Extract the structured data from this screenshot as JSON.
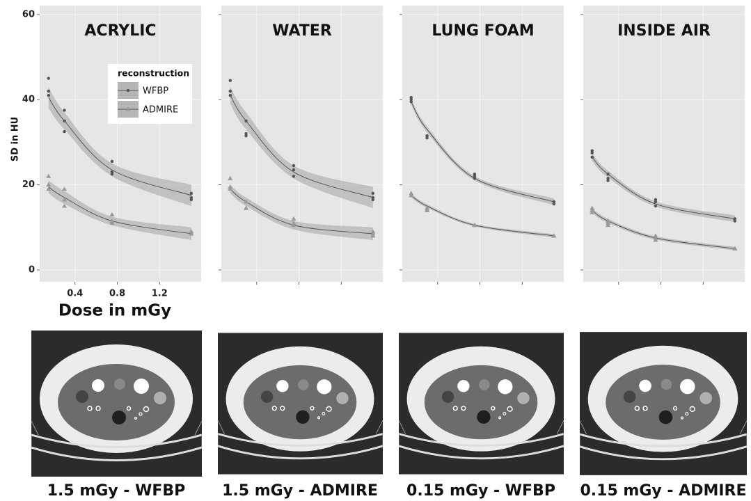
{
  "chart_data": [
    {
      "type": "scatter",
      "title": "ACRYLIC",
      "ylabel": "SD in HU",
      "xlabel": "Dose in mGy",
      "xlim": [
        0.066,
        1.593
      ],
      "ylim": [
        -2.8,
        62.1
      ],
      "xticks": [
        0.4,
        0.8,
        1.2
      ],
      "yticks": [
        0,
        20,
        40,
        60
      ],
      "grid": true,
      "legend": "top-right",
      "legend_title": "reconstruction",
      "series": [
        {
          "name": "WFBP",
          "color": "#555555",
          "marker": "circle",
          "x": [
            0.15,
            0.15,
            0.15,
            0.3,
            0.3,
            0.3,
            0.75,
            0.75,
            0.75,
            1.5,
            1.5,
            1.5
          ],
          "values": [
            45,
            42,
            41,
            37.5,
            35,
            32.5,
            25.5,
            23,
            22.5,
            18,
            17,
            16.5
          ],
          "fit": {
            "x": [
              0.15,
              0.3,
              0.75,
              1.5
            ],
            "values": [
              40.5,
              35,
              23.5,
              17.5
            ],
            "lower": [
              38,
              33,
              22,
              15
            ],
            "upper": [
              43,
              37,
              25,
              20
            ]
          }
        },
        {
          "name": "ADMIRE",
          "color": "#999999",
          "marker": "triangle",
          "x": [
            0.15,
            0.15,
            0.15,
            0.3,
            0.3,
            0.3,
            0.75,
            0.75,
            0.75,
            1.5,
            1.5,
            1.5
          ],
          "values": [
            22,
            20,
            19,
            19,
            16.5,
            15,
            13,
            11.5,
            11,
            9,
            8.5,
            8.5
          ],
          "fit": {
            "x": [
              0.15,
              0.3,
              0.75,
              1.5
            ],
            "values": [
              19.5,
              17,
              11.5,
              8.5
            ],
            "lower": [
              18,
              15.5,
              10.5,
              7
            ],
            "upper": [
              21,
              18.5,
              12.5,
              10
            ]
          }
        }
      ]
    },
    {
      "type": "scatter",
      "title": "WATER",
      "xlim": [
        0.066,
        1.593
      ],
      "ylim": [
        -2.8,
        62.1
      ],
      "series": [
        {
          "name": "WFBP",
          "color": "#555555",
          "marker": "circle",
          "x": [
            0.15,
            0.15,
            0.15,
            0.3,
            0.3,
            0.3,
            0.75,
            0.75,
            0.75,
            1.5,
            1.5,
            1.5
          ],
          "values": [
            44.5,
            42,
            41,
            35,
            32,
            31.5,
            24.5,
            23.5,
            22,
            18,
            17,
            16.5
          ],
          "fit": {
            "x": [
              0.15,
              0.3,
              0.75,
              1.5
            ],
            "values": [
              41,
              35,
              23,
              17
            ],
            "lower": [
              39,
              33,
              21.5,
              14.5
            ],
            "upper": [
              43,
              37,
              24.5,
              19.5
            ]
          }
        },
        {
          "name": "ADMIRE",
          "color": "#999999",
          "marker": "triangle",
          "x": [
            0.15,
            0.15,
            0.15,
            0.3,
            0.3,
            0.3,
            0.75,
            0.75,
            0.75,
            1.5,
            1.5,
            1.5
          ],
          "values": [
            21.5,
            19.5,
            19,
            16,
            14.5,
            14.5,
            12,
            11,
            10.5,
            9,
            8.5,
            8
          ],
          "fit": {
            "x": [
              0.15,
              0.3,
              0.75,
              1.5
            ],
            "values": [
              19,
              16,
              10.5,
              8.5
            ],
            "lower": [
              18,
              15,
              9.5,
              7
            ],
            "upper": [
              20,
              17,
              11.5,
              10
            ]
          }
        }
      ]
    },
    {
      "type": "scatter",
      "title": "LUNG FOAM",
      "xlim": [
        0.066,
        1.593
      ],
      "ylim": [
        -2.8,
        62.1
      ],
      "series": [
        {
          "name": "WFBP",
          "color": "#555555",
          "marker": "circle",
          "x": [
            0.15,
            0.15,
            0.15,
            0.3,
            0.3,
            0.3,
            0.75,
            0.75,
            0.75,
            1.5,
            1.5,
            1.5
          ],
          "values": [
            40.5,
            40,
            39.5,
            31.5,
            31.5,
            31,
            22.5,
            22,
            21.5,
            16,
            16,
            15.5
          ],
          "fit": {
            "x": [
              0.15,
              0.3,
              0.75,
              1.5
            ],
            "values": [
              39.5,
              33,
              21.5,
              16
            ],
            "lower": [
              38.8,
              32.3,
              21,
              15.2
            ],
            "upper": [
              40.2,
              33.7,
              22,
              16.8
            ]
          }
        },
        {
          "name": "ADMIRE",
          "color": "#999999",
          "marker": "triangle",
          "x": [
            0.15,
            0.15,
            0.15,
            0.3,
            0.3,
            0.3,
            0.75,
            0.75,
            0.75,
            1.5,
            1.5,
            1.5
          ],
          "values": [
            18,
            17.5,
            17.5,
            14.5,
            14,
            14,
            10.5,
            10.5,
            10.5,
            8,
            8,
            8
          ],
          "fit": {
            "x": [
              0.15,
              0.3,
              0.75,
              1.5
            ],
            "values": [
              17.5,
              15,
              10.5,
              8
            ],
            "lower": [
              17,
              14.6,
              10.2,
              7.6
            ],
            "upper": [
              18,
              15.4,
              10.8,
              8.4
            ]
          }
        }
      ]
    },
    {
      "type": "scatter",
      "title": "INSIDE AIR",
      "xlim": [
        0.066,
        1.593
      ],
      "ylim": [
        -2.8,
        62.1
      ],
      "series": [
        {
          "name": "WFBP",
          "color": "#555555",
          "marker": "circle",
          "x": [
            0.15,
            0.15,
            0.15,
            0.3,
            0.3,
            0.3,
            0.75,
            0.75,
            0.75,
            1.5,
            1.5,
            1.5
          ],
          "values": [
            28,
            27.5,
            26.5,
            22.5,
            21.5,
            21,
            16.5,
            16,
            15,
            12,
            12,
            11.5
          ],
          "fit": {
            "x": [
              0.15,
              0.3,
              0.75,
              1.5
            ],
            "values": [
              26.5,
              22.5,
              15.5,
              12
            ],
            "lower": [
              25.6,
              21.7,
              14.9,
              11.2
            ],
            "upper": [
              27.4,
              23.3,
              16.1,
              12.8
            ]
          }
        },
        {
          "name": "ADMIRE",
          "color": "#999999",
          "marker": "triangle",
          "x": [
            0.15,
            0.15,
            0.15,
            0.3,
            0.3,
            0.3,
            0.75,
            0.75,
            0.75,
            1.5,
            1.5,
            1.5
          ],
          "values": [
            14.5,
            14,
            13.5,
            11.5,
            11,
            10.5,
            8,
            7.5,
            7,
            5,
            5,
            5
          ],
          "fit": {
            "x": [
              0.15,
              0.3,
              0.75,
              1.5
            ],
            "values": [
              14,
              11.5,
              7.5,
              5
            ],
            "lower": [
              13.4,
              11,
              7.1,
              4.6
            ],
            "upper": [
              14.6,
              12,
              7.9,
              5.4
            ]
          }
        }
      ]
    }
  ],
  "images": [
    {
      "caption": "1.5 mGy - WFBP"
    },
    {
      "caption": "1.5 mGy - ADMIRE"
    },
    {
      "caption": "0.15 mGy - WFBP"
    },
    {
      "caption": "0.15 mGy - ADMIRE"
    }
  ]
}
